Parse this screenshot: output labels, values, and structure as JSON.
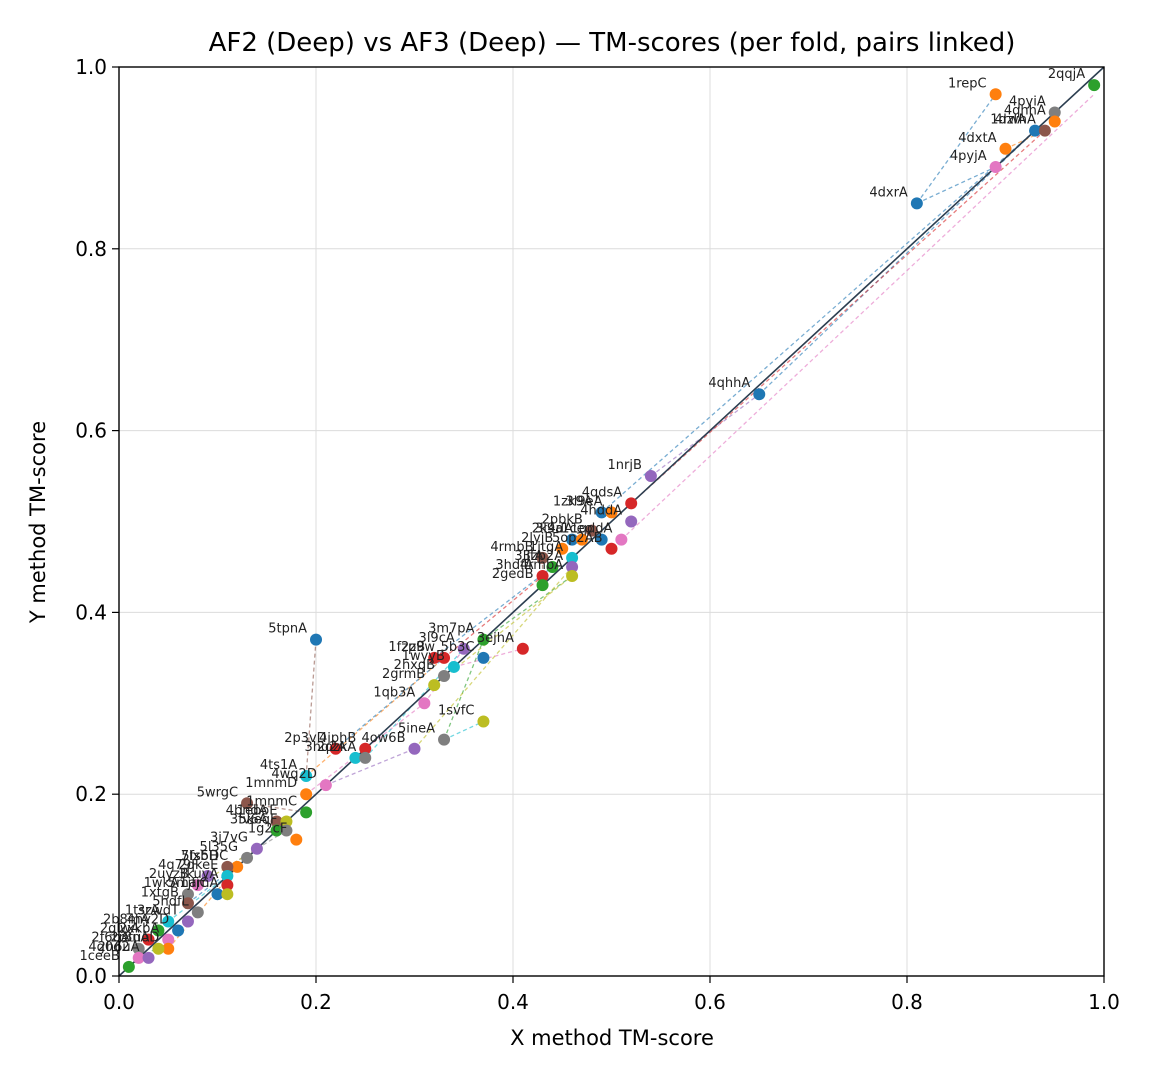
{
  "chart_data": {
    "type": "scatter",
    "title": "AF2 (Deep) vs AF3 (Deep) — TM-scores (per fold, pairs linked)",
    "xlabel": "X method TM-score",
    "ylabel": "Y method TM-score",
    "xlim": [
      0.0,
      1.0
    ],
    "ylim": [
      0.0,
      1.0
    ],
    "xticks": [
      "0.0",
      "0.2",
      "0.4",
      "0.6",
      "0.8",
      "1.0"
    ],
    "yticks": [
      "0.0",
      "0.2",
      "0.4",
      "0.6",
      "0.8",
      "1.0"
    ],
    "grid": true,
    "diagonal": true,
    "palette": [
      "#1f77b4",
      "#ff7f0e",
      "#2ca02c",
      "#d62728",
      "#9467bd",
      "#8c564b",
      "#e377c2",
      "#7f7f7f",
      "#bcbd22",
      "#17becf"
    ],
    "points": [
      {
        "label": "2qqjA",
        "x": 0.99,
        "y": 0.98,
        "color": "#2ca02c"
      },
      {
        "label": "1repC",
        "x": 0.89,
        "y": 0.97,
        "color": "#ff7f0e"
      },
      {
        "label": "1dzlA",
        "x": 0.93,
        "y": 0.93,
        "color": "#1f77b4"
      },
      {
        "label": "4pyiA",
        "x": 0.95,
        "y": 0.95,
        "color": "#7f7f7f"
      },
      {
        "label": "4qhhA",
        "x": 0.95,
        "y": 0.94,
        "color": "#ff7f0e"
      },
      {
        "label": "4rwhA",
        "x": 0.94,
        "y": 0.93,
        "color": "#8c564b"
      },
      {
        "label": "4pyjA",
        "x": 0.89,
        "y": 0.89,
        "color": "#e377c2"
      },
      {
        "label": "4dxtA",
        "x": 0.9,
        "y": 0.91,
        "color": "#ff7f0e"
      },
      {
        "label": "4dxrA",
        "x": 0.81,
        "y": 0.85,
        "color": "#1f77b4"
      },
      {
        "label": "4qhhA",
        "x": 0.65,
        "y": 0.64,
        "color": "#1f77b4"
      },
      {
        "label": "1nrjB",
        "x": 0.54,
        "y": 0.55,
        "color": "#9467bd"
      },
      {
        "label": "1zk9A",
        "x": 0.49,
        "y": 0.51,
        "color": "#1f77b4"
      },
      {
        "label": "4qdsA",
        "x": 0.52,
        "y": 0.52,
        "color": "#d62728"
      },
      {
        "label": "3l9eA",
        "x": 0.5,
        "y": 0.51,
        "color": "#ff7f0e"
      },
      {
        "label": "4hddA",
        "x": 0.52,
        "y": 0.5,
        "color": "#9467bd"
      },
      {
        "label": "2pbkB",
        "x": 0.48,
        "y": 0.49,
        "color": "#8c564b"
      },
      {
        "label": "3l9a",
        "x": 0.46,
        "y": 0.48,
        "color": "#1f77b4"
      },
      {
        "label": "2k4dA",
        "x": 0.47,
        "y": 0.48,
        "color": "#ff7f0e"
      },
      {
        "label": "1qddA",
        "x": 0.51,
        "y": 0.48,
        "color": "#e377c2"
      },
      {
        "label": "1ceo",
        "x": 0.49,
        "y": 0.48,
        "color": "#1f77b4"
      },
      {
        "label": "2lyjB",
        "x": 0.45,
        "y": 0.47,
        "color": "#ff7f0e"
      },
      {
        "label": "5op2AB",
        "x": 0.5,
        "y": 0.47,
        "color": "#d62728"
      },
      {
        "label": "1jtgA",
        "x": 0.46,
        "y": 0.46,
        "color": "#17becf"
      },
      {
        "label": "4rmbB",
        "x": 0.43,
        "y": 0.46,
        "color": "#8c564b"
      },
      {
        "label": "3ljfA",
        "x": 0.44,
        "y": 0.45,
        "color": "#2ca02c"
      },
      {
        "label": "3zp2A",
        "x": 0.46,
        "y": 0.45,
        "color": "#9467bd"
      },
      {
        "label": "3hdfA",
        "x": 0.43,
        "y": 0.44,
        "color": "#d62728"
      },
      {
        "label": "4rmbA",
        "x": 0.46,
        "y": 0.44,
        "color": "#bcbd22"
      },
      {
        "label": "2gedB",
        "x": 0.43,
        "y": 0.43,
        "color": "#2ca02c"
      },
      {
        "label": "3m7pA",
        "x": 0.37,
        "y": 0.37,
        "color": "#2ca02c"
      },
      {
        "label": "3l9cA",
        "x": 0.35,
        "y": 0.36,
        "color": "#9467bd"
      },
      {
        "label": "2z9w",
        "x": 0.33,
        "y": 0.35,
        "color": "#d62728"
      },
      {
        "label": "5b3C",
        "x": 0.37,
        "y": 0.35,
        "color": "#1f77b4"
      },
      {
        "label": "3ejhA",
        "x": 0.41,
        "y": 0.36,
        "color": "#d62728"
      },
      {
        "label": "1fzpB",
        "x": 0.32,
        "y": 0.35,
        "color": "#d62728"
      },
      {
        "label": "1wyyB",
        "x": 0.34,
        "y": 0.34,
        "color": "#17becf"
      },
      {
        "label": "2grmB",
        "x": 0.32,
        "y": 0.32,
        "color": "#bcbd22"
      },
      {
        "label": "2hxqB",
        "x": 0.33,
        "y": 0.33,
        "color": "#7f7f7f"
      },
      {
        "label": "1qb3A",
        "x": 0.31,
        "y": 0.3,
        "color": "#e377c2"
      },
      {
        "label": "1svfC",
        "x": 0.37,
        "y": 0.28,
        "color": "#bcbd22"
      },
      {
        "label": "5ineA",
        "x": 0.33,
        "y": 0.26,
        "color": "#7f7f7f"
      },
      {
        "label": "5tpnA",
        "x": 0.2,
        "y": 0.37,
        "color": "#1f77b4"
      },
      {
        "label": "2p3vD",
        "x": 0.22,
        "y": 0.25,
        "color": "#d62728"
      },
      {
        "label": "4ow6B",
        "x": 0.3,
        "y": 0.25,
        "color": "#9467bd"
      },
      {
        "label": "4jphB",
        "x": 0.25,
        "y": 0.25,
        "color": "#d62728"
      },
      {
        "label": "3hq2A",
        "x": 0.24,
        "y": 0.24,
        "color": "#17becf"
      },
      {
        "label": "2ozkA",
        "x": 0.25,
        "y": 0.24,
        "color": "#7f7f7f"
      },
      {
        "label": "4ts1A",
        "x": 0.19,
        "y": 0.22,
        "color": "#17becf"
      },
      {
        "label": "4wq2D",
        "x": 0.21,
        "y": 0.21,
        "color": "#e377c2"
      },
      {
        "label": "1mnmD",
        "x": 0.19,
        "y": 0.2,
        "color": "#ff7f0e"
      },
      {
        "label": "1mnmC",
        "x": 0.19,
        "y": 0.18,
        "color": "#2ca02c"
      },
      {
        "label": "5wrgC",
        "x": 0.13,
        "y": 0.19,
        "color": "#8c564b"
      },
      {
        "label": "4bndA",
        "x": 0.16,
        "y": 0.17,
        "color": "#8c564b"
      },
      {
        "label": "1eboE",
        "x": 0.17,
        "y": 0.17,
        "color": "#bcbd22"
      },
      {
        "label": "3fv6A",
        "x": 0.16,
        "y": 0.16,
        "color": "#2ca02c"
      },
      {
        "label": "5keqF",
        "x": 0.17,
        "y": 0.16,
        "color": "#7f7f7f"
      },
      {
        "label": "1g2cF",
        "x": 0.18,
        "y": 0.15,
        "color": "#ff7f0e"
      },
      {
        "label": "3j7vG",
        "x": 0.14,
        "y": 0.14,
        "color": "#9467bd"
      },
      {
        "label": "5l35G",
        "x": 0.13,
        "y": 0.13,
        "color": "#7f7f7f"
      },
      {
        "label": "5fs5DC",
        "x": 0.12,
        "y": 0.12,
        "color": "#ff7f0e"
      },
      {
        "label": "7lxbH",
        "x": 0.11,
        "y": 0.12,
        "color": "#8c564b"
      },
      {
        "label": "2qkeE",
        "x": 0.11,
        "y": 0.11,
        "color": "#17becf"
      },
      {
        "label": "4q79F",
        "x": 0.09,
        "y": 0.11,
        "color": "#9467bd"
      },
      {
        "label": "3kuyA",
        "x": 0.11,
        "y": 0.1,
        "color": "#d62728"
      },
      {
        "label": "2uyzB",
        "x": 0.08,
        "y": 0.1,
        "color": "#e377c2"
      },
      {
        "label": "1jfjC",
        "x": 0.1,
        "y": 0.09,
        "color": "#1f77b4"
      },
      {
        "label": "1wkA",
        "x": 0.07,
        "y": 0.09,
        "color": "#7f7f7f"
      },
      {
        "label": "5mamA",
        "x": 0.11,
        "y": 0.09,
        "color": "#bcbd22"
      },
      {
        "label": "1xtgB",
        "x": 0.07,
        "y": 0.08,
        "color": "#8c564b"
      },
      {
        "label": "5hdfL",
        "x": 0.08,
        "y": 0.07,
        "color": "#7f7f7f"
      },
      {
        "label": "3zwdT",
        "x": 0.07,
        "y": 0.06,
        "color": "#9467bd"
      },
      {
        "label": "1tsrA",
        "x": 0.05,
        "y": 0.06,
        "color": "#17becf"
      },
      {
        "label": "4hy2D",
        "x": 0.06,
        "y": 0.05,
        "color": "#1f77b4"
      },
      {
        "label": "2b8mA",
        "x": 0.04,
        "y": 0.05,
        "color": "#2ca02c"
      },
      {
        "label": "2glwA",
        "x": 0.03,
        "y": 0.04,
        "color": "#d62728"
      },
      {
        "label": "2xkbA",
        "x": 0.05,
        "y": 0.04,
        "color": "#e377c2"
      },
      {
        "label": "3tuoD",
        "x": 0.05,
        "y": 0.03,
        "color": "#ff7f0e"
      },
      {
        "label": "2r8nA",
        "x": 0.04,
        "y": 0.03,
        "color": "#bcbd22"
      },
      {
        "label": "2f6bA",
        "x": 0.02,
        "y": 0.03,
        "color": "#7f7f7f"
      },
      {
        "label": "4g0d2",
        "x": 0.02,
        "y": 0.02,
        "color": "#e377c2"
      },
      {
        "label": "2h6uA",
        "x": 0.03,
        "y": 0.02,
        "color": "#9467bd"
      },
      {
        "label": "1ceeB",
        "x": 0.01,
        "y": 0.01,
        "color": "#2ca02c"
      }
    ],
    "links": [
      {
        "from": [
          0.81,
          0.85
        ],
        "to": [
          0.89,
          0.97
        ],
        "color": "#1f77b4"
      },
      {
        "from": [
          0.81,
          0.85
        ],
        "to": [
          0.89,
          0.89
        ],
        "color": "#1f77b4"
      },
      {
        "from": [
          0.89,
          0.89
        ],
        "to": [
          0.95,
          0.95
        ],
        "color": "#1f77b4"
      },
      {
        "from": [
          0.9,
          0.91
        ],
        "to": [
          0.94,
          0.93
        ],
        "color": "#ff7f0e"
      },
      {
        "from": [
          0.65,
          0.64
        ],
        "to": [
          0.93,
          0.93
        ],
        "color": "#1f77b4"
      },
      {
        "from": [
          0.54,
          0.55
        ],
        "to": [
          0.65,
          0.64
        ],
        "color": "#9467bd"
      },
      {
        "from": [
          0.49,
          0.51
        ],
        "to": [
          0.93,
          0.93
        ],
        "color": "#1f77b4"
      },
      {
        "from": [
          0.52,
          0.52
        ],
        "to": [
          0.94,
          0.93
        ],
        "color": "#d62728"
      },
      {
        "from": [
          0.51,
          0.48
        ],
        "to": [
          0.99,
          0.97
        ],
        "color": "#e377c2"
      },
      {
        "from": [
          0.46,
          0.44
        ],
        "to": [
          0.46,
          0.46
        ],
        "color": "#bcbd22"
      },
      {
        "from": [
          0.43,
          0.46
        ],
        "to": [
          0.43,
          0.43
        ],
        "color": "#8c564b"
      },
      {
        "from": [
          0.37,
          0.37
        ],
        "to": [
          0.46,
          0.44
        ],
        "color": "#2ca02c"
      },
      {
        "from": [
          0.32,
          0.35
        ],
        "to": [
          0.44,
          0.45
        ],
        "color": "#1f77b4"
      },
      {
        "from": [
          0.33,
          0.35
        ],
        "to": [
          0.43,
          0.44
        ],
        "color": "#d62728"
      },
      {
        "from": [
          0.32,
          0.32
        ],
        "to": [
          0.46,
          0.44
        ],
        "color": "#bcbd22"
      },
      {
        "from": [
          0.34,
          0.34
        ],
        "to": [
          0.41,
          0.36
        ],
        "color": "#e377c2"
      },
      {
        "from": [
          0.31,
          0.3
        ],
        "to": [
          0.35,
          0.36
        ],
        "color": "#e377c2"
      },
      {
        "from": [
          0.33,
          0.26
        ],
        "to": [
          0.37,
          0.37
        ],
        "color": "#2ca02c"
      },
      {
        "from": [
          0.33,
          0.26
        ],
        "to": [
          0.37,
          0.28
        ],
        "color": "#17becf"
      },
      {
        "from": [
          0.3,
          0.25
        ],
        "to": [
          0.46,
          0.45
        ],
        "color": "#bcbd22"
      },
      {
        "from": [
          0.2,
          0.37
        ],
        "to": [
          0.19,
          0.22
        ],
        "color": "#8c564b"
      },
      {
        "from": [
          0.19,
          0.22
        ],
        "to": [
          0.33,
          0.35
        ],
        "color": "#ff7f0e"
      },
      {
        "from": [
          0.19,
          0.2
        ],
        "to": [
          0.31,
          0.3
        ],
        "color": "#e377c2"
      },
      {
        "from": [
          0.22,
          0.25
        ],
        "to": [
          0.33,
          0.35
        ],
        "color": "#1f77b4"
      },
      {
        "from": [
          0.25,
          0.24
        ],
        "to": [
          0.35,
          0.36
        ],
        "color": "#17becf"
      },
      {
        "from": [
          0.21,
          0.21
        ],
        "to": [
          0.3,
          0.25
        ],
        "color": "#9467bd"
      },
      {
        "from": [
          0.13,
          0.19
        ],
        "to": [
          0.19,
          0.18
        ],
        "color": "#8c564b"
      },
      {
        "from": [
          0.14,
          0.14
        ],
        "to": [
          0.21,
          0.21
        ],
        "color": "#9467bd"
      },
      {
        "from": [
          0.11,
          0.12
        ],
        "to": [
          0.17,
          0.16
        ],
        "color": "#7f7f7f"
      },
      {
        "from": [
          0.07,
          0.08
        ],
        "to": [
          0.13,
          0.13
        ],
        "color": "#1f77b4"
      },
      {
        "from": [
          0.05,
          0.06
        ],
        "to": [
          0.11,
          0.11
        ],
        "color": "#17becf"
      },
      {
        "from": [
          0.02,
          0.02
        ],
        "to": [
          0.07,
          0.07
        ],
        "color": "#e377c2"
      },
      {
        "from": [
          0.01,
          0.01
        ],
        "to": [
          0.05,
          0.04
        ],
        "color": "#2ca02c"
      },
      {
        "from": [
          0.03,
          0.03
        ],
        "to": [
          0.09,
          0.09
        ],
        "color": "#9467bd"
      },
      {
        "from": [
          0.05,
          0.03
        ],
        "to": [
          0.12,
          0.12
        ],
        "color": "#ff7f0e"
      },
      {
        "from": [
          0.08,
          0.1
        ],
        "to": [
          0.14,
          0.14
        ],
        "color": "#bcbd22"
      }
    ]
  }
}
